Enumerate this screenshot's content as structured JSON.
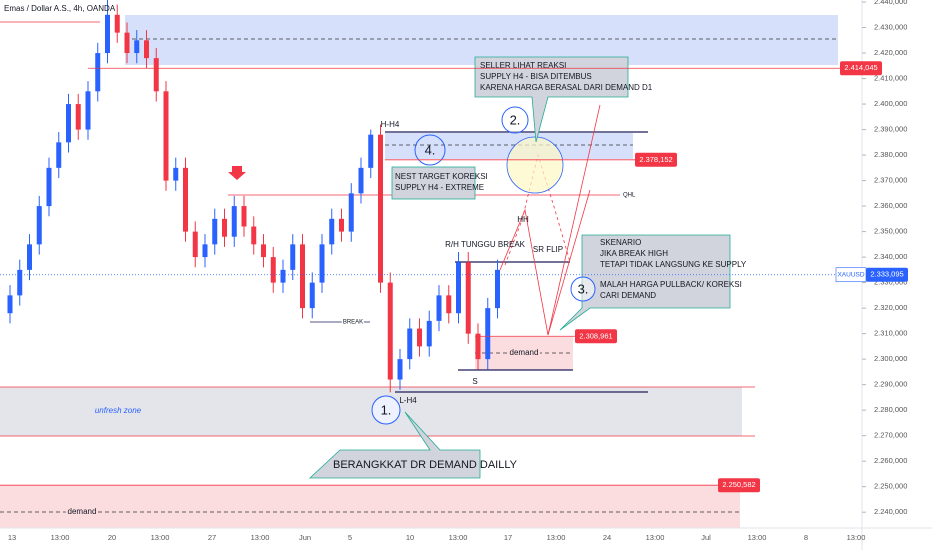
{
  "chart_data": {
    "type": "candlestick",
    "title": "Emas / Dollar A.S., 4h, OANDA",
    "up_color": "#2962ff",
    "down_color": "#f23645",
    "ylim": [
      2233.8,
      2440.8
    ],
    "yticks": [
      {
        "value": 2240,
        "label": "2.240,000"
      },
      {
        "value": 2250,
        "label": "2.250,000"
      },
      {
        "value": 2260,
        "label": "2.260,000"
      },
      {
        "value": 2270,
        "label": "2.270,000"
      },
      {
        "value": 2280,
        "label": "2.280,000"
      },
      {
        "value": 2290,
        "label": "2.290,000"
      },
      {
        "value": 2300,
        "label": "2.300,000"
      },
      {
        "value": 2310,
        "label": "2.310,000"
      },
      {
        "value": 2320,
        "label": "2.320,000"
      },
      {
        "value": 2330,
        "label": "2.330,000"
      },
      {
        "value": 2340,
        "label": "2.340,000"
      },
      {
        "value": 2350,
        "label": "2.350,000"
      },
      {
        "value": 2360,
        "label": "2.360,000"
      },
      {
        "value": 2370,
        "label": "2.370,000"
      },
      {
        "value": 2380,
        "label": "2.380,000"
      },
      {
        "value": 2390,
        "label": "2.390,000"
      },
      {
        "value": 2400,
        "label": "2.400,000"
      },
      {
        "value": 2410,
        "label": "2.410,000"
      },
      {
        "value": 2420,
        "label": "2.420,000"
      },
      {
        "value": 2430,
        "label": "2.430,000"
      },
      {
        "value": 2440,
        "label": "2.440,000"
      }
    ],
    "x_labels": [
      "13",
      "13:00",
      "20",
      "13:00",
      "27",
      "13:00",
      "Jun",
      "5",
      "10",
      "13:00",
      "17",
      "13:00",
      "24",
      "13:00",
      "Jul",
      "13:00",
      "8",
      "13:00"
    ],
    "series": [
      {
        "name": "XAUUSD",
        "open": [
          2318,
          2325,
          2335,
          2345,
          2360,
          2375,
          2385,
          2400,
          2390,
          2405,
          2420,
          2435,
          2428,
          2420,
          2425,
          2418,
          2405,
          2370,
          2375,
          2350,
          2340,
          2345,
          2355,
          2348,
          2360,
          2352,
          2345,
          2340,
          2330,
          2335,
          2345,
          2320,
          2330,
          2345,
          2355,
          2350,
          2365,
          2375,
          2388,
          2330,
          2292,
          2300,
          2312,
          2305,
          2315,
          2325,
          2318,
          2338,
          2310,
          2300,
          2320
        ],
        "high": [
          2329,
          2339,
          2349,
          2364,
          2379,
          2389,
          2404,
          2404,
          2409,
          2424,
          2446,
          2439,
          2432,
          2429,
          2429,
          2422,
          2409,
          2379,
          2379,
          2354,
          2349,
          2359,
          2359,
          2364,
          2364,
          2356,
          2349,
          2344,
          2339,
          2349,
          2349,
          2334,
          2349,
          2359,
          2359,
          2369,
          2379,
          2390,
          2392,
          2334,
          2304,
          2316,
          2316,
          2319,
          2329,
          2329,
          2342,
          2342,
          2314,
          2324,
          2339
        ],
        "low": [
          2314,
          2321,
          2331,
          2341,
          2356,
          2371,
          2381,
          2386,
          2386,
          2401,
          2416,
          2424,
          2416,
          2416,
          2414,
          2401,
          2366,
          2366,
          2346,
          2336,
          2336,
          2341,
          2344,
          2344,
          2348,
          2341,
          2336,
          2326,
          2326,
          2331,
          2316,
          2316,
          2326,
          2341,
          2346,
          2346,
          2361,
          2371,
          2326,
          2287,
          2288,
          2296,
          2301,
          2301,
          2311,
          2314,
          2314,
          2306,
          2296,
          2296,
          2316
        ],
        "close": [
          2325,
          2335,
          2345,
          2360,
          2375,
          2385,
          2400,
          2390,
          2405,
          2420,
          2435,
          2428,
          2420,
          2425,
          2418,
          2405,
          2370,
          2375,
          2350,
          2340,
          2345,
          2355,
          2348,
          2360,
          2352,
          2345,
          2340,
          2330,
          2335,
          2345,
          2320,
          2330,
          2345,
          2355,
          2350,
          2365,
          2375,
          2388,
          2330,
          2292,
          2300,
          2312,
          2305,
          2315,
          2325,
          2318,
          2338,
          2310,
          2300,
          2320,
          2335
        ]
      }
    ],
    "price_labels": [
      {
        "name": "",
        "value": 2414.045,
        "label": "2.414,045",
        "color": "#f23645"
      },
      {
        "value": 2378.152,
        "label": "2.378,152",
        "color": "#f23645"
      },
      {
        "value": 2308.961,
        "label": "2.308,961",
        "color": "#f23645"
      },
      {
        "value": 2250.582,
        "label": "2.250,582",
        "color": "#f23645"
      },
      {
        "value": 2333.095,
        "label": "2.333,095",
        "color": "#2962ff"
      }
    ],
    "symbol": "XAUUSD",
    "annotations": [
      "SELLER LIHAT REAKSI",
      "SUPPLY H4 - BISA DITEMBUS",
      "KARENA HARGA BERASAL DARI DEMAND D1",
      "2.",
      "H-H4",
      "4.",
      "NEST TARGET KOREKSI",
      "SUPPLY H4 - EXTREME",
      "QHL",
      "HH",
      "R/H",
      "TUNGGU BREAK",
      "SR FLIP",
      "SKENARIO",
      "JIKA BREAK HIGH",
      "TETAPI TIDAK LANGSUNG KE SUPPLY",
      "MALAH HARGA PULLBACK/ KOREKSI",
      "CARI DEMAND",
      "3.",
      "BREAK",
      "demand",
      "S",
      "L-H4",
      "1.",
      "unfresh zone",
      "BERANGKKAT DR DEMAND DAILLY",
      "demand"
    ]
  }
}
